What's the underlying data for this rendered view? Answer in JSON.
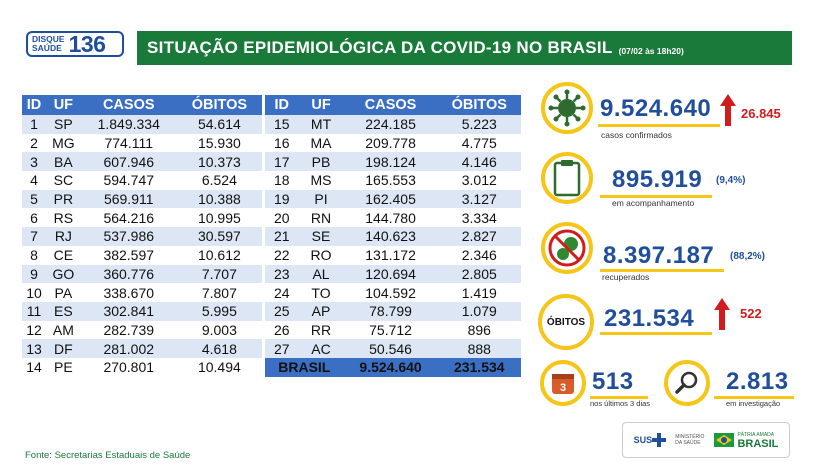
{
  "logo": {
    "line1": "DISQUE",
    "line2": "SAÚDE",
    "number": "136"
  },
  "header": {
    "title": "SITUAÇÃO EPIDEMIOLÓGICA DA COVID-19 NO BRASIL",
    "date": "(07/02 às 18h20)"
  },
  "table": {
    "columns": [
      "ID",
      "UF",
      "CASOS",
      "ÓBITOS"
    ],
    "left_rows": [
      [
        "1",
        "SP",
        "1.849.334",
        "54.614"
      ],
      [
        "2",
        "MG",
        "774.111",
        "15.930"
      ],
      [
        "3",
        "BA",
        "607.946",
        "10.373"
      ],
      [
        "4",
        "SC",
        "594.747",
        "6.524"
      ],
      [
        "5",
        "PR",
        "569.911",
        "10.388"
      ],
      [
        "6",
        "RS",
        "564.216",
        "10.995"
      ],
      [
        "7",
        "RJ",
        "537.986",
        "30.597"
      ],
      [
        "8",
        "CE",
        "382.597",
        "10.612"
      ],
      [
        "9",
        "GO",
        "360.776",
        "7.707"
      ],
      [
        "10",
        "PA",
        "338.670",
        "7.807"
      ],
      [
        "11",
        "ES",
        "302.841",
        "5.995"
      ],
      [
        "12",
        "AM",
        "282.739",
        "9.003"
      ],
      [
        "13",
        "DF",
        "281.002",
        "4.618"
      ],
      [
        "14",
        "PE",
        "270.801",
        "10.494"
      ]
    ],
    "right_rows": [
      [
        "15",
        "MT",
        "224.185",
        "5.223"
      ],
      [
        "16",
        "MA",
        "209.778",
        "4.775"
      ],
      [
        "17",
        "PB",
        "198.124",
        "4.146"
      ],
      [
        "18",
        "MS",
        "165.553",
        "3.012"
      ],
      [
        "19",
        "PI",
        "162.405",
        "3.127"
      ],
      [
        "20",
        "RN",
        "144.780",
        "3.334"
      ],
      [
        "21",
        "SE",
        "140.623",
        "2.827"
      ],
      [
        "22",
        "RO",
        "131.172",
        "2.346"
      ],
      [
        "23",
        "AL",
        "120.694",
        "2.805"
      ],
      [
        "24",
        "TO",
        "104.592",
        "1.419"
      ],
      [
        "25",
        "AP",
        "78.799",
        "1.079"
      ],
      [
        "26",
        "RR",
        "75.712",
        "896"
      ],
      [
        "27",
        "AC",
        "50.546",
        "888"
      ]
    ],
    "total": {
      "label": "BRASIL",
      "casos": "9.524.640",
      "obitos": "231.534"
    }
  },
  "stats": {
    "confirmed": {
      "value": "9.524.640",
      "delta": "26.845",
      "label": "casos confirmados",
      "icon": "virus-icon"
    },
    "monitoring": {
      "value": "895.919",
      "pct": "(9,4%)",
      "label": "em acompanhamento",
      "icon": "clipboard-icon"
    },
    "recovered": {
      "value": "8.397.187",
      "pct": "(88,2%)",
      "label": "recuperados",
      "icon": "no-virus-icon"
    },
    "deaths": {
      "badge": "ÓBITOS",
      "value": "231.534",
      "delta": "522"
    },
    "last3days": {
      "value": "513",
      "label": "nos últimos 3 dias",
      "icon_text": "3"
    },
    "investigation": {
      "value": "2.813",
      "label": "em investigação",
      "icon": "magnifier-icon"
    }
  },
  "footer": {
    "source": "Fonte: Secretarias Estaduais de Saúde"
  },
  "gov": {
    "sus": "SUS",
    "ministry": "MINISTÉRIO DA SAÚDE",
    "patria": "PÁTRIA AMADA",
    "brasil": "BRASIL"
  },
  "colors": {
    "green": "#1a7a3a",
    "blue": "#3a6fc4",
    "navy": "#1f4e9c",
    "yellow": "#f5c518",
    "red": "#d01c1c"
  }
}
